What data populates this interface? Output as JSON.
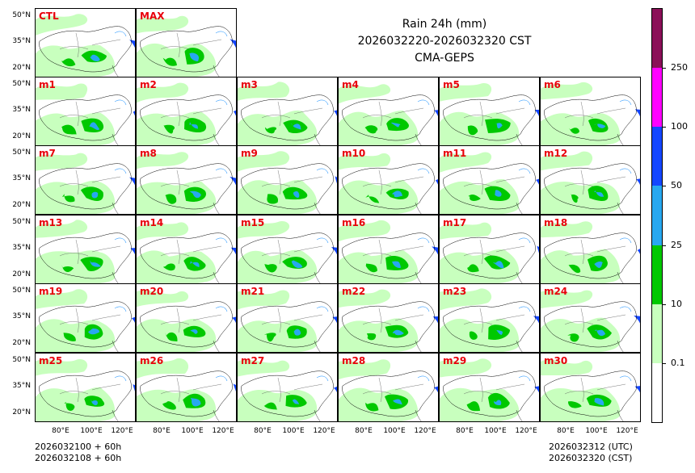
{
  "title_lines": [
    "Rain 24h (mm)",
    "2026032220-2026032320 CST",
    "CMA-GEPS"
  ],
  "footer_left": [
    "2026032100 + 60h",
    "2026032108 + 60h"
  ],
  "footer_right": [
    "2026032312 (UTC)",
    "2026032320 (CST)"
  ],
  "lat_ticks": [
    "50°N",
    "35°N",
    "20°N"
  ],
  "lon_ticks": [
    "80°E",
    "100°E",
    "120°E"
  ],
  "panel_rows": [
    [
      "CTL",
      "MAX"
    ],
    [
      "m1",
      "m2",
      "m3",
      "m4",
      "m5",
      "m6"
    ],
    [
      "m7",
      "m8",
      "m9",
      "m10",
      "m11",
      "m12"
    ],
    [
      "m13",
      "m14",
      "m15",
      "m16",
      "m17",
      "m18"
    ],
    [
      "m19",
      "m20",
      "m21",
      "m22",
      "m23",
      "m24"
    ],
    [
      "m25",
      "m26",
      "m27",
      "m28",
      "m29",
      "m30"
    ]
  ],
  "colorbar": {
    "labels": [
      "0.1",
      "10",
      "25",
      "50",
      "100",
      "250"
    ],
    "colors": [
      "#ffffff",
      "#c8ffbe",
      "#00c800",
      "#28a8f0",
      "#1446ff",
      "#ff00ff",
      "#8b1058"
    ]
  },
  "colors": {
    "light_rain": "#c8ffbe",
    "moderate": "#00c800",
    "heavy": "#28a8f0",
    "very_heavy": "#1446ff",
    "label": "#e8000b"
  }
}
